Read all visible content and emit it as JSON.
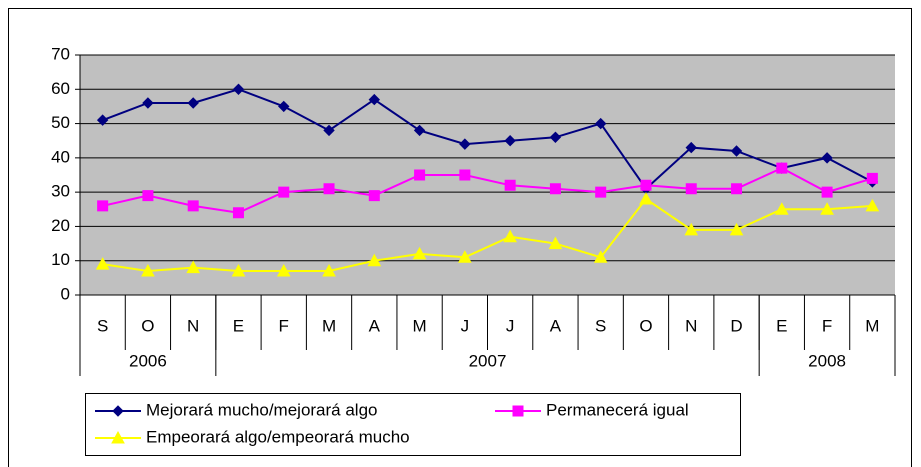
{
  "chart_data": {
    "type": "line",
    "categories": [
      "S",
      "O",
      "N",
      "E",
      "F",
      "M",
      "A",
      "M",
      "J",
      "J",
      "A",
      "S",
      "O",
      "N",
      "D",
      "E",
      "F",
      "M"
    ],
    "year_groups": [
      {
        "label": "2006",
        "span": 3
      },
      {
        "label": "2007",
        "span": 12
      },
      {
        "label": "2008",
        "span": 3
      }
    ],
    "series": [
      {
        "name": "Mejorará mucho/mejorará algo",
        "color": "#000080",
        "marker": "diamond",
        "values": [
          51,
          56,
          56,
          60,
          55,
          48,
          57,
          48,
          44,
          45,
          46,
          50,
          31,
          43,
          42,
          37,
          40,
          33
        ]
      },
      {
        "name": "Permanecerá igual",
        "color": "#ff00ff",
        "marker": "square",
        "values": [
          26,
          29,
          26,
          24,
          30,
          31,
          29,
          35,
          35,
          32,
          31,
          30,
          32,
          31,
          31,
          37,
          30,
          34
        ]
      },
      {
        "name": "Empeorará algo/empeorará mucho",
        "color": "#ffff00",
        "marker": "triangle",
        "values": [
          9,
          7,
          8,
          7,
          7,
          7,
          10,
          12,
          11,
          17,
          15,
          11,
          28,
          19,
          19,
          25,
          25,
          26
        ]
      }
    ],
    "ylim": [
      0,
      70
    ],
    "yticks": [
      0,
      10,
      20,
      30,
      40,
      50,
      60,
      70
    ],
    "grid": true,
    "plot_background": "#c0c0c0",
    "legend": "bottom"
  }
}
